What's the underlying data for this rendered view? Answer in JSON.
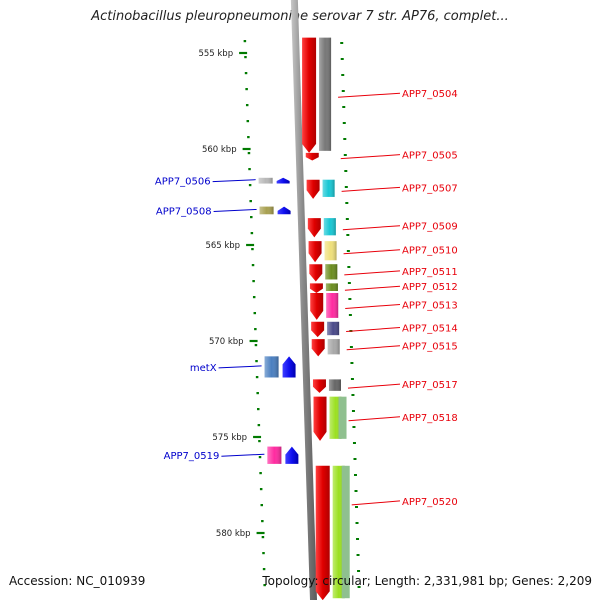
{
  "title": "Actinobacillus pleuropneumoniae serovar 7 str. AP76, complet...",
  "footer": {
    "accession": "Accession: NC_010939",
    "topology": "Topology: circular; Length: 2,331,981 bp; Genes: 2,209"
  },
  "scale_unit": "kbp",
  "ticks": [
    {
      "label": "555 kbp",
      "kbp": 555
    },
    {
      "label": "560 kbp",
      "kbp": 560
    },
    {
      "label": "565 kbp",
      "kbp": 565
    },
    {
      "label": "570 kbp",
      "kbp": 570
    },
    {
      "label": "575 kbp",
      "kbp": 575
    },
    {
      "label": "580 kbp",
      "kbp": 580
    }
  ],
  "genes": [
    {
      "label": "APP7_0504",
      "strand": "+",
      "start_kbp": 554.2,
      "end_kbp": 560.2,
      "color": "#e8000b",
      "bar": "#777777"
    },
    {
      "label": "APP7_0505",
      "strand": "+",
      "start_kbp": 560.2,
      "end_kbp": 560.6,
      "color": "#e8000b",
      "bar": null
    },
    {
      "label": "APP7_0506",
      "strand": "-",
      "start_kbp": 561.5,
      "end_kbp": 561.8,
      "color": "#1a1aff",
      "bar": "#b8b8b8"
    },
    {
      "label": "APP7_0507",
      "strand": "+",
      "start_kbp": 561.6,
      "end_kbp": 562.6,
      "color": "#e8000b",
      "bar": "#17c7d4"
    },
    {
      "label": "APP7_0508",
      "strand": "-",
      "start_kbp": 563.0,
      "end_kbp": 563.4,
      "color": "#1a1aff",
      "bar": "#a8a050"
    },
    {
      "label": "APP7_0509",
      "strand": "+",
      "start_kbp": 563.6,
      "end_kbp": 564.6,
      "color": "#e8000b",
      "bar": "#17c7d4"
    },
    {
      "label": "APP7_0510",
      "strand": "+",
      "start_kbp": 564.8,
      "end_kbp": 565.9,
      "color": "#e8000b",
      "bar": "#efe07a"
    },
    {
      "label": "APP7_0511",
      "strand": "+",
      "start_kbp": 566.0,
      "end_kbp": 566.9,
      "color": "#e8000b",
      "bar": "#6b8d1f"
    },
    {
      "label": "APP7_0512",
      "strand": "+",
      "start_kbp": 567.0,
      "end_kbp": 567.5,
      "color": "#e8000b",
      "bar": "#6b8d1f"
    },
    {
      "label": "APP7_0513",
      "strand": "+",
      "start_kbp": 567.5,
      "end_kbp": 568.9,
      "color": "#e8000b",
      "bar": "#ff2aa0"
    },
    {
      "label": "APP7_0514",
      "strand": "+",
      "start_kbp": 569.0,
      "end_kbp": 569.8,
      "color": "#e8000b",
      "bar": "#4a4a8a"
    },
    {
      "label": "APP7_0515",
      "strand": "+",
      "start_kbp": 569.9,
      "end_kbp": 570.8,
      "color": "#e8000b",
      "bar": "#a8a8a8"
    },
    {
      "label": "metX",
      "strand": "-",
      "start_kbp": 570.8,
      "end_kbp": 571.9,
      "color": "#1a1aff",
      "bar": "#4a7fc0"
    },
    {
      "label": "APP7_0517",
      "strand": "+",
      "start_kbp": 572.0,
      "end_kbp": 572.7,
      "color": "#e8000b",
      "bar": "#666666"
    },
    {
      "label": "APP7_0518",
      "strand": "+",
      "start_kbp": 572.9,
      "end_kbp": 575.2,
      "color": "#e8000b",
      "bar": "#9be020",
      "bar2": "#8fc08f"
    },
    {
      "label": "APP7_0519",
      "strand": "-",
      "start_kbp": 575.5,
      "end_kbp": 576.4,
      "color": "#1a1aff",
      "bar": "#ff2aa0"
    },
    {
      "label": "APP7_0520",
      "strand": "+",
      "start_kbp": 576.5,
      "end_kbp": 583.5,
      "color": "#e8000b",
      "bar": "#9be020",
      "bar2": "#8fc08f"
    }
  ],
  "colors": {
    "forward_label": "#e8000b",
    "reverse_label": "#0000cc",
    "tick": "#007a00",
    "backbone": "#999999"
  }
}
